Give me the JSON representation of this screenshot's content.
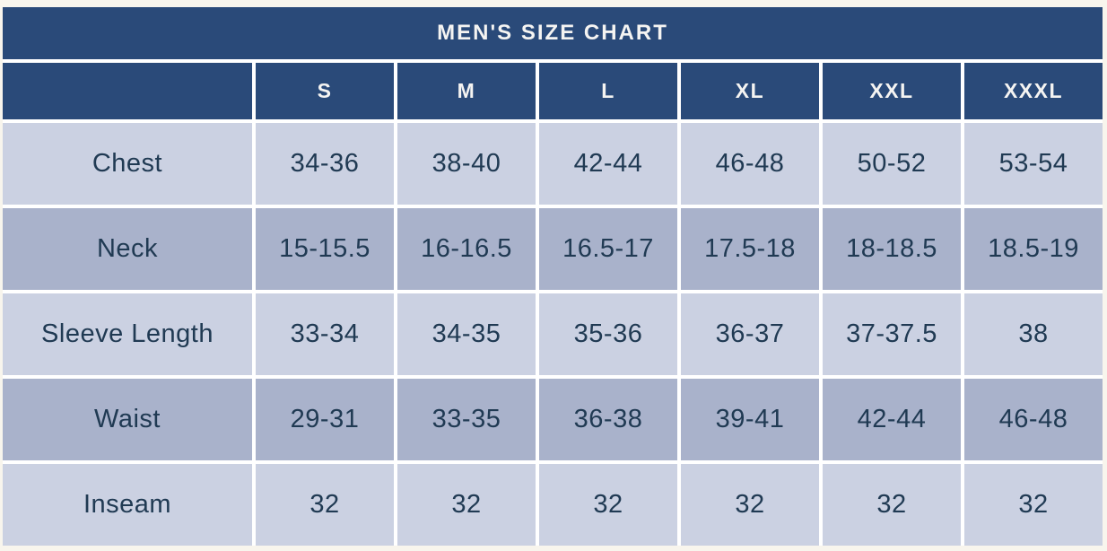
{
  "title": "MEN'S SIZE CHART",
  "header": {
    "columns": [
      "S",
      "M",
      "L",
      "XL",
      "XXL",
      "XXXL"
    ]
  },
  "body": {
    "rows": [
      {
        "label": "Chest",
        "values": [
          "34-36",
          "38-40",
          "42-44",
          "46-48",
          "50-52",
          "53-54"
        ]
      },
      {
        "label": "Neck",
        "values": [
          "15-15.5",
          "16-16.5",
          "16.5-17",
          "17.5-18",
          "18-18.5",
          "18.5-19"
        ]
      },
      {
        "label": "Sleeve Length",
        "values": [
          "33-34",
          "34-35",
          "35-36",
          "36-37",
          "37-37.5",
          "38"
        ]
      },
      {
        "label": "Waist",
        "values": [
          "29-31",
          "33-35",
          "36-38",
          "39-41",
          "42-44",
          "46-48"
        ]
      },
      {
        "label": "Inseam",
        "values": [
          "32",
          "32",
          "32",
          "32",
          "32",
          "32"
        ]
      }
    ]
  },
  "colors": {
    "header_blue": "#2a4a79",
    "row_light": "#cbd1e2",
    "row_dark": "#a9b2cb",
    "text_navy": "#203a53",
    "gap_white": "#ffffff",
    "page_cream": "#f8f5ed"
  },
  "chart_data": {
    "type": "table",
    "title": "MEN'S SIZE CHART",
    "columns": [
      "",
      "S",
      "M",
      "L",
      "XL",
      "XXL",
      "XXXL"
    ],
    "rows": [
      [
        "Chest",
        "34-36",
        "38-40",
        "42-44",
        "46-48",
        "50-52",
        "53-54"
      ],
      [
        "Neck",
        "15-15.5",
        "16-16.5",
        "16.5-17",
        "17.5-18",
        "18-18.5",
        "18.5-19"
      ],
      [
        "Sleeve Length",
        "33-34",
        "34-35",
        "35-36",
        "36-37",
        "37-37.5",
        "38"
      ],
      [
        "Waist",
        "29-31",
        "33-35",
        "36-38",
        "39-41",
        "42-44",
        "46-48"
      ],
      [
        "Inseam",
        "32",
        "32",
        "32",
        "32",
        "32",
        "32"
      ]
    ],
    "layout": {
      "header_row": true,
      "first_column_is_label": true,
      "grid": "white 4px separators",
      "legend_position": "none"
    }
  }
}
